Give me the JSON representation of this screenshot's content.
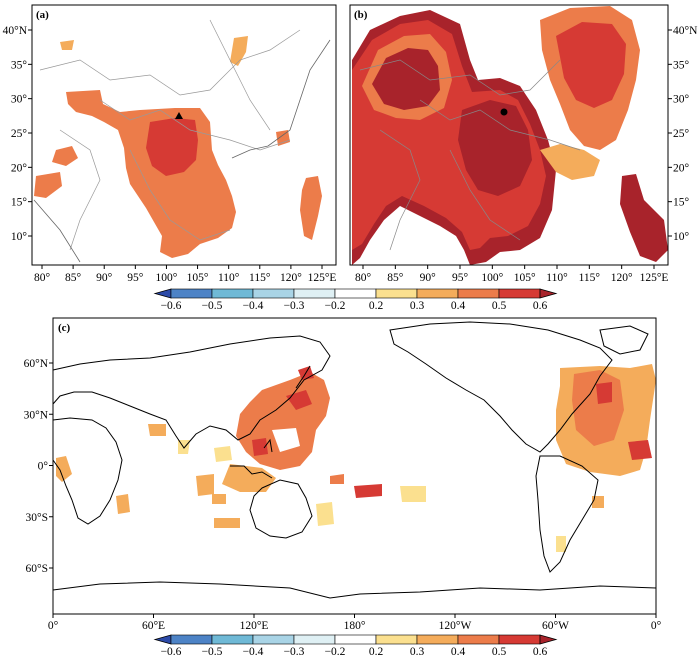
{
  "panels": [
    {
      "id": "a",
      "label": "(a)",
      "x_ticks": [
        "80°",
        "85°",
        "90°",
        "95°",
        "100°",
        "105°",
        "110°",
        "115°",
        "120°",
        "125°E"
      ],
      "y_ticks": [
        "40°N",
        "35°",
        "30°",
        "25°",
        "20°",
        "15°",
        "10°"
      ],
      "marker": "triangle"
    },
    {
      "id": "b",
      "label": "(b)",
      "x_ticks": [
        "80°",
        "85°",
        "90°",
        "95°",
        "100°",
        "105°",
        "110°",
        "115°",
        "120°",
        "125°E"
      ],
      "y_ticks": [
        "40°N",
        "35°",
        "30°",
        "25°",
        "20°",
        "15°",
        "10°"
      ],
      "marker": "circle"
    },
    {
      "id": "c",
      "label": "(c)",
      "x_ticks": [
        "0°",
        "60°E",
        "120°E",
        "180°",
        "120°W",
        "60°W",
        "0°"
      ],
      "y_ticks": [
        "60°N",
        "30°N",
        "0°",
        "30°S",
        "60°S"
      ]
    }
  ],
  "colorbar": {
    "ticks": [
      "−0.6",
      "−0.5",
      "−0.4",
      "−0.3",
      "−0.2",
      "0.2",
      "0.3",
      "0.4",
      "0.5",
      "0.6"
    ],
    "colors": [
      "#2c4aa8",
      "#4d83c6",
      "#6fb9d6",
      "#a9d4e6",
      "#dff0f4",
      "#ffffff",
      "#fbe08f",
      "#f4ac5b",
      "#ec7c4a",
      "#d63a34",
      "#a8232b"
    ]
  }
}
